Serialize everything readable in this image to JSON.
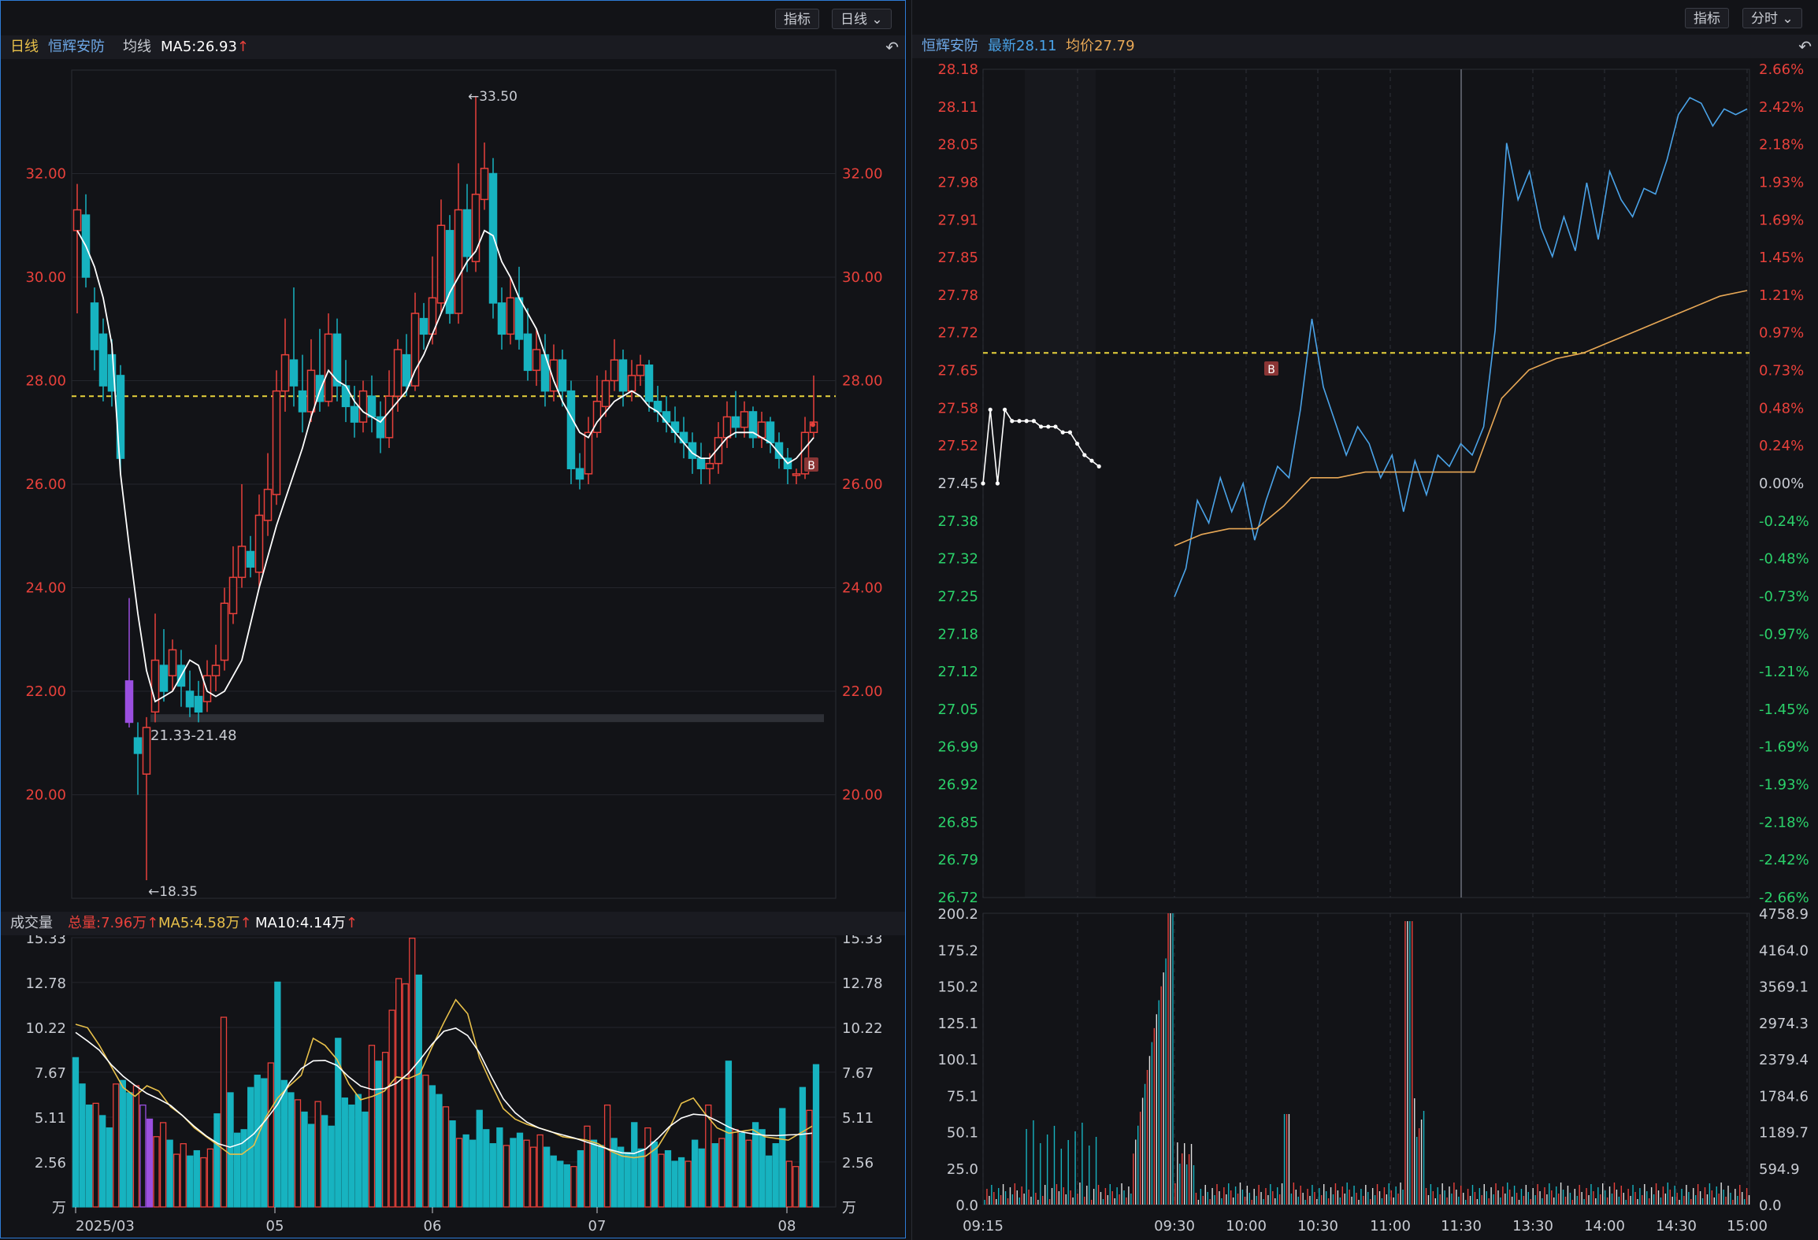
{
  "left": {
    "buttons": {
      "indicator": "指标",
      "period": "日线 ⌄"
    },
    "info": {
      "period": "日线",
      "stock": "恒辉安防",
      "ma_label": "均线",
      "ma5": "MA5:26.93"
    },
    "y_labels": [
      "32.00",
      "30.00",
      "28.00",
      "26.00",
      "24.00",
      "22.00",
      "20.00"
    ],
    "high_marker": "←33.50",
    "low_marker": "←18.35",
    "range_label": "21.33-21.48",
    "trade_marker": "B",
    "vol_info": {
      "label": "成交量",
      "total": "总量:7.96万",
      "ma5": "MA5:4.58万",
      "ma10": "MA10:4.14万"
    },
    "vol_labels": [
      "15.33",
      "12.78",
      "10.22",
      "7.67",
      "5.11",
      "2.56",
      "万"
    ],
    "x_labels": [
      "2025/03",
      "05",
      "06",
      "07",
      "08"
    ]
  },
  "right": {
    "buttons": {
      "indicator": "指标",
      "period": "分时 ⌄"
    },
    "info": {
      "stock": "恒辉安防",
      "latest": "最新28.11",
      "avg": "均价27.79"
    },
    "price_labels": [
      "28.18",
      "28.11",
      "28.05",
      "27.98",
      "27.91",
      "27.85",
      "27.78",
      "27.72",
      "27.65",
      "27.58",
      "27.52",
      "27.45",
      "27.38",
      "27.32",
      "27.25",
      "27.18",
      "27.12",
      "27.05",
      "26.99",
      "26.92",
      "26.85",
      "26.79",
      "26.72"
    ],
    "pct_labels": [
      "2.66%",
      "2.42%",
      "2.18%",
      "1.93%",
      "1.69%",
      "1.45%",
      "1.21%",
      "0.97%",
      "0.73%",
      "0.48%",
      "0.24%",
      "0.00%",
      "-0.24%",
      "-0.48%",
      "-0.73%",
      "-0.97%",
      "-1.21%",
      "-1.45%",
      "-1.69%",
      "-1.93%",
      "-2.18%",
      "-2.42%",
      "-2.66%"
    ],
    "vol_left_labels": [
      "200.2",
      "175.2",
      "150.2",
      "125.1",
      "100.1",
      "75.1",
      "50.1",
      "25.0",
      "0.0"
    ],
    "vol_right_labels": [
      "4758.9",
      "4164.0",
      "3569.1",
      "2974.3",
      "2379.4",
      "1784.6",
      "1189.7",
      "594.9",
      "0.0"
    ],
    "time_labels": [
      "09:15",
      "09:30",
      "10:00",
      "10:30",
      "11:00",
      "11:30",
      "13:30",
      "14:00",
      "14:30",
      "15:00"
    ],
    "trade_marker": "B"
  },
  "colors": {
    "up": "#e8413b",
    "down": "#17b3c0",
    "ma5": "#ffffff",
    "avg": "#e8a856",
    "price": "#4aa3e8",
    "ref": "#e8d33c",
    "green": "#2bd16a"
  },
  "chart_data": [
    {
      "type": "candlestick",
      "title": "日线 恒辉安防",
      "ylim": [
        18,
        34
      ],
      "high": 33.5,
      "low": 18.35,
      "reference_price": 27.7,
      "annotation": "21.33-21.48",
      "ma5": [
        30.9,
        30.6,
        30.2,
        29.6,
        28.7,
        26.2,
        24.8,
        23.5,
        22.4,
        21.8,
        21.9,
        22.0,
        22.3,
        22.6,
        22.5,
        22.0,
        21.9,
        22.0,
        22.3,
        22.6,
        23.3,
        24.0,
        24.6,
        25.2,
        25.7,
        26.2,
        26.7,
        27.3,
        27.8,
        28.2,
        28.0,
        27.9,
        27.6,
        27.4,
        27.3,
        27.2,
        27.4,
        27.6,
        27.8,
        28.2,
        28.5,
        28.9,
        29.3,
        29.7,
        30.0,
        30.3,
        30.5,
        30.9,
        30.8,
        30.3,
        30.0,
        29.6,
        29.3,
        29.0,
        28.5,
        28.0,
        27.6,
        27.3,
        27.0,
        26.9,
        27.2,
        27.4,
        27.6,
        27.7,
        27.8,
        27.7,
        27.5,
        27.4,
        27.2,
        27.0,
        26.8,
        26.6,
        26.5,
        26.5,
        26.7,
        26.9,
        27.0,
        27.0,
        27.0,
        26.9,
        26.8,
        26.6,
        26.4,
        26.5,
        26.7,
        26.9
      ],
      "candles": [
        [
          30.9,
          31.3,
          31.8,
          29.3
        ],
        [
          31.2,
          30.0,
          31.6,
          29.8
        ],
        [
          29.5,
          28.6,
          29.8,
          28.2
        ],
        [
          28.9,
          27.9,
          29.2,
          27.6
        ],
        [
          28.5,
          27.8,
          28.8,
          27.5
        ],
        [
          28.1,
          26.5,
          28.3,
          26.2
        ],
        [
          22.2,
          21.4,
          23.8,
          21.3
        ],
        [
          21.1,
          20.8,
          21.4,
          20.0
        ],
        [
          20.4,
          21.3,
          21.5,
          18.35
        ],
        [
          21.6,
          22.6,
          23.5,
          21.4
        ],
        [
          22.5,
          22.0,
          23.2,
          21.8
        ],
        [
          22.3,
          22.8,
          23.0,
          22.0
        ],
        [
          22.5,
          22.1,
          22.8,
          21.7
        ],
        [
          22.0,
          21.7,
          22.4,
          21.5
        ],
        [
          21.9,
          21.6,
          22.2,
          21.4
        ],
        [
          21.8,
          22.3,
          22.6,
          21.6
        ],
        [
          22.3,
          22.5,
          22.9,
          22.0
        ],
        [
          22.6,
          23.7,
          24.0,
          22.4
        ],
        [
          23.5,
          24.2,
          24.8,
          23.3
        ],
        [
          24.2,
          24.8,
          26.0,
          24.0
        ],
        [
          24.7,
          24.4,
          25.0,
          24.2
        ],
        [
          24.3,
          25.4,
          25.8,
          24.0
        ],
        [
          25.3,
          25.9,
          26.6,
          25.0
        ],
        [
          25.8,
          27.8,
          28.2,
          25.6
        ],
        [
          27.8,
          28.5,
          29.2,
          27.4
        ],
        [
          28.4,
          27.9,
          29.8,
          27.5
        ],
        [
          27.8,
          27.4,
          28.5,
          27.0
        ],
        [
          27.4,
          28.2,
          28.8,
          27.2
        ],
        [
          28.1,
          27.6,
          29.0,
          27.4
        ],
        [
          27.6,
          28.9,
          29.3,
          27.5
        ],
        [
          28.9,
          27.9,
          29.2,
          27.6
        ],
        [
          27.9,
          27.5,
          28.4,
          27.2
        ],
        [
          27.5,
          27.2,
          27.9,
          26.9
        ],
        [
          27.2,
          27.8,
          28.0,
          27.0
        ],
        [
          27.7,
          27.3,
          28.1,
          27.0
        ],
        [
          27.3,
          26.9,
          27.6,
          26.6
        ],
        [
          26.9,
          27.7,
          28.2,
          26.7
        ],
        [
          27.7,
          28.6,
          28.8,
          27.4
        ],
        [
          28.5,
          27.9,
          28.9,
          27.7
        ],
        [
          27.9,
          29.3,
          29.7,
          27.8
        ],
        [
          29.2,
          28.9,
          29.5,
          28.6
        ],
        [
          28.9,
          29.6,
          30.4,
          28.7
        ],
        [
          29.5,
          31.0,
          31.5,
          29.3
        ],
        [
          30.9,
          29.3,
          31.2,
          29.1
        ],
        [
          29.3,
          31.3,
          32.2,
          29.1
        ],
        [
          31.3,
          30.4,
          31.8,
          30.1
        ],
        [
          30.3,
          31.6,
          33.5,
          30.1
        ],
        [
          31.5,
          32.1,
          32.6,
          31.3
        ],
        [
          32.0,
          29.5,
          32.3,
          29.2
        ],
        [
          29.5,
          28.9,
          29.8,
          28.6
        ],
        [
          28.9,
          29.6,
          30.0,
          28.7
        ],
        [
          29.6,
          28.8,
          30.2,
          28.6
        ],
        [
          28.9,
          28.2,
          29.4,
          28.0
        ],
        [
          28.2,
          28.6,
          29.0,
          27.9
        ],
        [
          28.5,
          27.8,
          28.9,
          27.5
        ],
        [
          27.8,
          28.4,
          28.7,
          27.6
        ],
        [
          28.4,
          27.8,
          28.6,
          27.5
        ],
        [
          27.8,
          26.3,
          28.0,
          26.0
        ],
        [
          26.3,
          26.1,
          26.6,
          25.9
        ],
        [
          26.2,
          27.0,
          27.3,
          26.0
        ],
        [
          27.0,
          27.6,
          28.1,
          26.9
        ],
        [
          27.5,
          28.0,
          28.2,
          27.3
        ],
        [
          28.0,
          28.4,
          28.8,
          27.8
        ],
        [
          28.4,
          27.8,
          28.6,
          27.5
        ],
        [
          27.8,
          28.1,
          28.4,
          27.6
        ],
        [
          28.1,
          28.3,
          28.5,
          27.9
        ],
        [
          28.3,
          27.6,
          28.4,
          27.4
        ],
        [
          27.6,
          27.4,
          27.9,
          27.2
        ],
        [
          27.4,
          27.2,
          27.7,
          27.0
        ],
        [
          27.2,
          27.0,
          27.5,
          26.8
        ],
        [
          27.0,
          26.8,
          27.3,
          26.5
        ],
        [
          26.8,
          26.5,
          27.0,
          26.2
        ],
        [
          26.5,
          26.3,
          26.8,
          26.0
        ],
        [
          26.3,
          26.4,
          26.6,
          26.0
        ],
        [
          26.4,
          26.9,
          27.2,
          26.2
        ],
        [
          26.9,
          27.3,
          27.6,
          26.7
        ],
        [
          27.3,
          27.1,
          27.8,
          26.9
        ],
        [
          27.1,
          27.4,
          27.6,
          26.9
        ],
        [
          27.4,
          26.9,
          27.5,
          26.7
        ],
        [
          26.9,
          27.2,
          27.4,
          26.7
        ],
        [
          27.2,
          26.8,
          27.3,
          26.6
        ],
        [
          26.8,
          26.5,
          27.0,
          26.3
        ],
        [
          26.5,
          26.3,
          26.7,
          26.0
        ],
        [
          26.2,
          26.2,
          26.3,
          26.0
        ],
        [
          26.2,
          27.0,
          27.3,
          26.1
        ],
        [
          27.0,
          27.2,
          28.1,
          26.9
        ]
      ]
    },
    {
      "type": "bar",
      "title": "成交量",
      "ylim": [
        0,
        15.33
      ],
      "unit": "万",
      "values": [
        8.5,
        7.0,
        5.8,
        5.9,
        5.2,
        4.5,
        7.0,
        7.2,
        6.5,
        6.9,
        5.8,
        5.0,
        4.0,
        4.8,
        3.8,
        3.0,
        3.6,
        2.9,
        3.2,
        2.8,
        3.3,
        5.3,
        10.8,
        6.5,
        4.2,
        4.4,
        6.8,
        7.5,
        7.3,
        8.2,
        12.8,
        7.2,
        6.5,
        6.1,
        5.4,
        4.7,
        6.0,
        5.2,
        4.6,
        9.6,
        6.2,
        5.8,
        6.4,
        5.4,
        9.2,
        8.3,
        8.8,
        11.2,
        13.0,
        12.7,
        15.3,
        13.2,
        7.5,
        6.9,
        6.4,
        5.7,
        4.9,
        3.9,
        4.1,
        3.8,
        5.5,
        4.4,
        3.6,
        4.5,
        3.5,
        3.9,
        4.2,
        3.8,
        3.4,
        4.1,
        3.4,
        2.9,
        2.6,
        2.4,
        2.3,
        3.2,
        4.6,
        3.8,
        3.5,
        5.8,
        3.9,
        3.4,
        3.1,
        4.8,
        3.3,
        4.5,
        3.7,
        3.0,
        3.2,
        2.6,
        2.8,
        2.6,
        3.8,
        3.3,
        5.8,
        3.6,
        3.9,
        8.3,
        4.4,
        4.2,
        3.8,
        4.8,
        4.4,
        2.9,
        3.6,
        5.6,
        2.6,
        2.3,
        6.8,
        5.5,
        8.1
      ],
      "ma5": [
        10.4,
        10.2,
        9.2,
        8.0,
        6.8,
        6.3,
        6.9,
        6.6,
        5.7,
        5.2,
        4.5,
        4.0,
        3.5,
        3.0,
        3.0,
        3.5,
        5.1,
        6.2,
        6.9,
        7.5,
        9.6,
        9.2,
        8.4,
        7.0,
        6.1,
        6.3,
        6.6,
        7.4,
        7.3,
        7.6,
        9.1,
        10.5,
        11.8,
        11.0,
        8.5,
        7.0,
        5.6,
        5.0,
        4.7,
        4.5,
        4.3,
        4.0,
        3.9,
        3.8,
        3.6,
        3.2,
        2.9,
        2.8,
        2.9,
        3.4,
        4.5,
        5.9,
        6.2,
        5.3,
        4.5,
        4.2,
        4.3,
        4.4,
        4.0,
        3.9,
        3.8,
        4.2,
        4.6
      ]
    },
    {
      "type": "line",
      "title": "分时 恒辉安防",
      "ylim": [
        26.72,
        28.18
      ],
      "reference_price": 27.45,
      "price": [
        27.45,
        27.58,
        27.45,
        27.58,
        27.56,
        27.56,
        27.56,
        27.56,
        27.55,
        27.55,
        27.55,
        27.54,
        27.54,
        27.52,
        27.5,
        27.49,
        27.48,
        27.25,
        27.3,
        27.42,
        27.38,
        27.46,
        27.4,
        27.45,
        27.35,
        27.42,
        27.48,
        27.46,
        27.58,
        27.74,
        27.62,
        27.56,
        27.5,
        27.55,
        27.52,
        27.46,
        27.5,
        27.4,
        27.49,
        27.43,
        27.5,
        27.48,
        27.52,
        27.5,
        27.55,
        27.72,
        28.05,
        27.95,
        28.0,
        27.9,
        27.85,
        27.92,
        27.86,
        27.98,
        27.88,
        28.0,
        27.95,
        27.92,
        27.97,
        27.96,
        28.02,
        28.1,
        28.13,
        28.12,
        28.08,
        28.11,
        28.1,
        28.11
      ],
      "avg": [
        27.34,
        27.36,
        27.37,
        27.37,
        27.41,
        27.46,
        27.46,
        27.47,
        27.47,
        27.47,
        27.47,
        27.47,
        27.6,
        27.65,
        27.67,
        27.68,
        27.7,
        27.72,
        27.74,
        27.76,
        27.78,
        27.79
      ]
    }
  ]
}
